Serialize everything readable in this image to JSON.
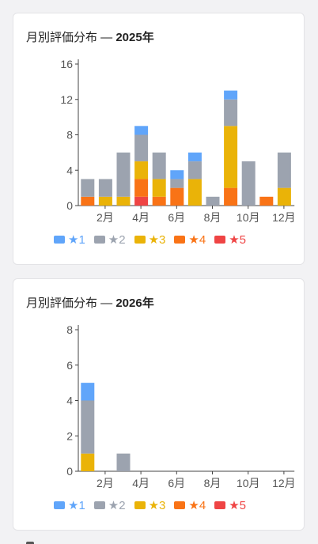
{
  "palette": {
    "r1": "#60a5fa",
    "r2": "#9ca3af",
    "r3": "#eab308",
    "r4": "#f97316",
    "r5": "#ef4444"
  },
  "legend": [
    {
      "key": "r1",
      "label": "★1"
    },
    {
      "key": "r2",
      "label": "★2"
    },
    {
      "key": "r3",
      "label": "★3"
    },
    {
      "key": "r4",
      "label": "★4"
    },
    {
      "key": "r5",
      "label": "★5"
    }
  ],
  "charts": [
    {
      "title_prefix": "月別評価分布 — ",
      "title_year": "2025年"
    },
    {
      "title_prefix": "月別評価分布 — ",
      "title_year": "2026年"
    }
  ],
  "chart_data": [
    {
      "type": "bar",
      "stacked": true,
      "title": "月別評価分布 — 2025年",
      "categories": [
        "1月",
        "2月",
        "3月",
        "4月",
        "5月",
        "6月",
        "7月",
        "8月",
        "9月",
        "10月",
        "11月",
        "12月"
      ],
      "x_tick_labels": [
        "2月",
        "4月",
        "6月",
        "8月",
        "10月",
        "12月"
      ],
      "y_ticks": [
        "0",
        "4",
        "8",
        "12",
        "16"
      ],
      "ylim": [
        0,
        16
      ],
      "series": [
        {
          "name": "★5",
          "values": [
            0,
            0,
            0,
            1,
            0,
            0,
            0,
            0,
            0,
            0,
            0,
            0
          ]
        },
        {
          "name": "★4",
          "values": [
            1,
            0,
            0,
            2,
            1,
            2,
            0,
            0,
            2,
            0,
            1,
            0
          ]
        },
        {
          "name": "★3",
          "values": [
            0,
            1,
            1,
            2,
            2,
            0,
            3,
            0,
            7,
            0,
            0,
            2
          ]
        },
        {
          "name": "★2",
          "values": [
            2,
            2,
            5,
            3,
            3,
            1,
            2,
            1,
            3,
            5,
            0,
            4
          ]
        },
        {
          "name": "★1",
          "values": [
            0,
            0,
            0,
            1,
            0,
            1,
            1,
            0,
            1,
            0,
            0,
            0
          ]
        }
      ]
    },
    {
      "type": "bar",
      "stacked": true,
      "title": "月別評価分布 — 2026年",
      "categories": [
        "1月",
        "2月",
        "3月",
        "4月",
        "5月",
        "6月",
        "7月",
        "8月",
        "9月",
        "10月",
        "11月",
        "12月"
      ],
      "x_tick_labels": [
        "2月",
        "4月",
        "6月",
        "8月",
        "10月",
        "12月"
      ],
      "y_ticks": [
        "0",
        "2",
        "4",
        "6",
        "8"
      ],
      "ylim": [
        0,
        8
      ],
      "series": [
        {
          "name": "★5",
          "values": [
            0,
            0,
            0,
            0,
            0,
            0,
            0,
            0,
            0,
            0,
            0,
            0
          ]
        },
        {
          "name": "★4",
          "values": [
            0,
            0,
            0,
            0,
            0,
            0,
            0,
            0,
            0,
            0,
            0,
            0
          ]
        },
        {
          "name": "★3",
          "values": [
            1,
            0,
            0,
            0,
            0,
            0,
            0,
            0,
            0,
            0,
            0,
            0
          ]
        },
        {
          "name": "★2",
          "values": [
            3,
            0,
            1,
            0,
            0,
            0,
            0,
            0,
            0,
            0,
            0,
            0
          ]
        },
        {
          "name": "★1",
          "values": [
            1,
            0,
            0,
            0,
            0,
            0,
            0,
            0,
            0,
            0,
            0,
            0
          ]
        }
      ]
    }
  ]
}
